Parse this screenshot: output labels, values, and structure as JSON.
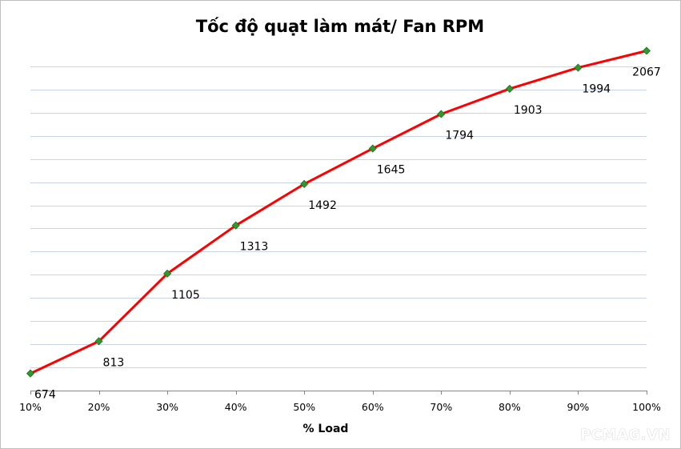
{
  "chart_data": {
    "type": "line",
    "title": "Tốc độ quạt làm mát/ Fan RPM",
    "xlabel": "% Load",
    "ylabel": "",
    "categories": [
      "10%",
      "20%",
      "30%",
      "40%",
      "50%",
      "60%",
      "70%",
      "80%",
      "90%",
      "100%"
    ],
    "series": [
      {
        "name": "Fan RPM",
        "values": [
          674,
          813,
          1105,
          1313,
          1492,
          1645,
          1794,
          1903,
          1994,
          2067
        ],
        "line_color": "#ff0000",
        "marker_color": "#2e9a2e"
      }
    ],
    "ylim": [
      600,
      2200
    ],
    "y_gridline_step": 100,
    "grid": true,
    "legend": "none",
    "data_labels": true
  },
  "watermark": "PCMAG.VN",
  "colors": {
    "gridline": "#c9d3ea",
    "axis": "#868686",
    "line": "#ff0000",
    "marker": "#2e9a2e",
    "marker_stroke": "#1f6e1f"
  }
}
